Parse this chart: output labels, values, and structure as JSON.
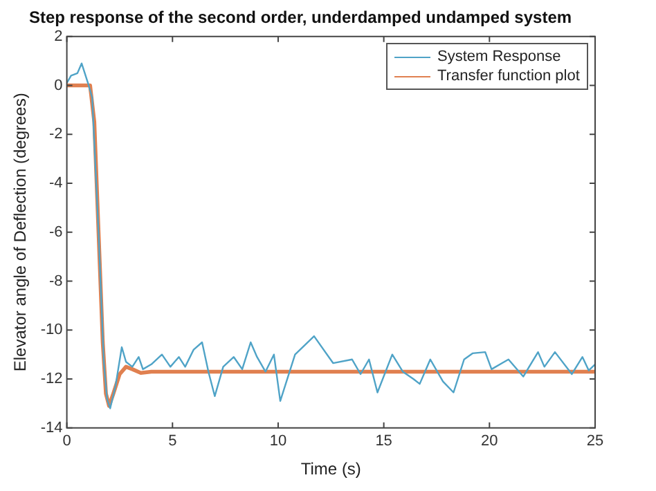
{
  "chart_data": {
    "type": "line",
    "title": "Step response of the second order, underdamped undamped system",
    "xlabel": "Time (s)",
    "ylabel": "Elevator angle of Deflection (degrees)",
    "xlim": [
      0,
      25
    ],
    "xticks": [
      0,
      5,
      10,
      15,
      20,
      25
    ],
    "ylim": [
      -14,
      2
    ],
    "yticks": [
      -14,
      -12,
      -10,
      -8,
      -6,
      -4,
      -2,
      0,
      2
    ],
    "grid": false,
    "legend": "top right",
    "marker": "none",
    "line_style": "solid",
    "series": [
      {
        "name": "System Response",
        "color": "#4fa3c7",
        "x": [
          0,
          0.2,
          0.5,
          0.7,
          1.0,
          1.2,
          1.5,
          1.75,
          1.9,
          2.05,
          2.3,
          2.6,
          2.8,
          3.1,
          3.4,
          3.6,
          4.0,
          4.5,
          4.9,
          5.3,
          5.6,
          6.0,
          6.4,
          6.7,
          7.0,
          7.4,
          7.9,
          8.3,
          8.7,
          9.0,
          9.4,
          9.8,
          10.1,
          10.8,
          11.7,
          12.6,
          13.5,
          13.9,
          14.3,
          14.7,
          15.4,
          15.9,
          16.4,
          16.7,
          17.2,
          17.8,
          18.3,
          18.8,
          19.2,
          19.8,
          20.1,
          20.6,
          20.9,
          21.6,
          22.3,
          22.6,
          23.1,
          23.9,
          24.4,
          24.7,
          25
        ],
        "values": [
          0.1,
          0.4,
          0.5,
          0.9,
          0.1,
          -0.5,
          -6,
          -11.3,
          -12.8,
          -13.2,
          -12.3,
          -10.7,
          -11.3,
          -11.5,
          -11.1,
          -11.6,
          -11.4,
          -11.0,
          -11.5,
          -11.1,
          -11.5,
          -10.8,
          -10.5,
          -11.7,
          -12.7,
          -11.5,
          -11.1,
          -11.6,
          -10.5,
          -11.1,
          -11.7,
          -11.0,
          -12.9,
          -11.0,
          -10.25,
          -11.35,
          -11.2,
          -11.8,
          -11.2,
          -12.55,
          -11.0,
          -11.7,
          -12.0,
          -12.2,
          -11.2,
          -12.1,
          -12.55,
          -11.2,
          -10.95,
          -10.9,
          -11.6,
          -11.35,
          -11.2,
          -11.9,
          -10.9,
          -11.5,
          -10.9,
          -11.8,
          -11.1,
          -11.65,
          -11.4
        ]
      },
      {
        "name": "Transfer function plot",
        "color": "#e08050",
        "x": [
          0,
          1.1,
          1.3,
          1.5,
          1.7,
          1.85,
          2.0,
          2.2,
          2.5,
          2.8,
          3.1,
          3.5,
          4,
          25
        ],
        "values": [
          0,
          0,
          -1.5,
          -6,
          -10.5,
          -12.6,
          -13.1,
          -12.6,
          -11.8,
          -11.5,
          -11.6,
          -11.75,
          -11.7,
          -11.7
        ]
      }
    ]
  }
}
